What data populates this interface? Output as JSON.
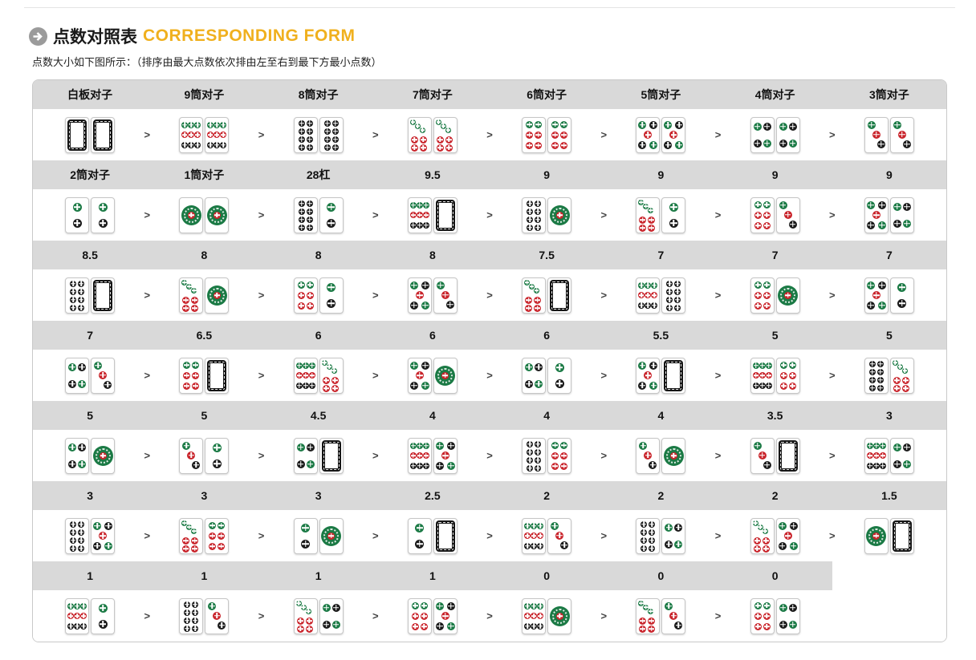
{
  "header": {
    "title_zh": "点数对照表",
    "title_en": "CORRESPONDING FORM",
    "subtitle": "点数大小如下图所示：（排序由最大点数依次排由左至右到最下方最小点数）"
  },
  "palette": {
    "green": "#1b7a45",
    "red": "#c9242b",
    "black": "#1a1a1a",
    "header_bg": "#d9d9d9",
    "title_en_color": "#f0b01e",
    "separator_color": "#444444"
  },
  "tile_legend": {
    "w": "white-dragon",
    "1": "1-dot",
    "2": "2-dot",
    "3": "3-dot",
    "4": "4-dot",
    "5": "5-dot",
    "6": "6-dot",
    "7": "7-dot",
    "8": "8-dot",
    "9": "9-dot"
  },
  "table": {
    "separator": ">",
    "columns": 8,
    "rows": [
      {
        "headers": [
          "白板对子",
          "9筒对子",
          "8筒对子",
          "7筒对子",
          "6筒对子",
          "5筒对子",
          "4筒对子",
          "3筒对子"
        ],
        "pairs": [
          [
            "w",
            "w"
          ],
          [
            "9",
            "9"
          ],
          [
            "8",
            "8"
          ],
          [
            "7",
            "7"
          ],
          [
            "6",
            "6"
          ],
          [
            "5",
            "5"
          ],
          [
            "4",
            "4"
          ],
          [
            "3",
            "3"
          ]
        ]
      },
      {
        "headers": [
          "2筒对子",
          "1筒对子",
          "28杠",
          "9.5",
          "9",
          "9",
          "9",
          "9"
        ],
        "pairs": [
          [
            "2",
            "2"
          ],
          [
            "1",
            "1"
          ],
          [
            "8",
            "2"
          ],
          [
            "9",
            "w"
          ],
          [
            "8",
            "1"
          ],
          [
            "7",
            "2"
          ],
          [
            "6",
            "3"
          ],
          [
            "5",
            "4"
          ]
        ]
      },
      {
        "headers": [
          "8.5",
          "8",
          "8",
          "8",
          "7.5",
          "7",
          "7",
          "7"
        ],
        "pairs": [
          [
            "8",
            "w"
          ],
          [
            "7",
            "1"
          ],
          [
            "6",
            "2"
          ],
          [
            "5",
            "3"
          ],
          [
            "7",
            "w"
          ],
          [
            "9",
            "8"
          ],
          [
            "6",
            "1"
          ],
          [
            "5",
            "2"
          ]
        ]
      },
      {
        "headers": [
          "7",
          "6.5",
          "6",
          "6",
          "6",
          "5.5",
          "5",
          "5"
        ],
        "pairs": [
          [
            "4",
            "3"
          ],
          [
            "6",
            "w"
          ],
          [
            "9",
            "7"
          ],
          [
            "5",
            "1"
          ],
          [
            "4",
            "2"
          ],
          [
            "5",
            "w"
          ],
          [
            "9",
            "6"
          ],
          [
            "8",
            "7"
          ]
        ]
      },
      {
        "headers": [
          "5",
          "5",
          "4.5",
          "4",
          "4",
          "4",
          "3.5",
          "3"
        ],
        "pairs": [
          [
            "4",
            "1"
          ],
          [
            "3",
            "2"
          ],
          [
            "4",
            "w"
          ],
          [
            "9",
            "5"
          ],
          [
            "8",
            "6"
          ],
          [
            "3",
            "1"
          ],
          [
            "3",
            "w"
          ],
          [
            "9",
            "4"
          ]
        ]
      },
      {
        "headers": [
          "3",
          "3",
          "3",
          "2.5",
          "2",
          "2",
          "2",
          "1.5"
        ],
        "pairs": [
          [
            "8",
            "5"
          ],
          [
            "7",
            "6"
          ],
          [
            "2",
            "1"
          ],
          [
            "2",
            "w"
          ],
          [
            "9",
            "3"
          ],
          [
            "8",
            "4"
          ],
          [
            "7",
            "5"
          ],
          [
            "1",
            "w"
          ]
        ]
      },
      {
        "headers": [
          "1",
          "1",
          "1",
          "1",
          "0",
          "0",
          "0"
        ],
        "pairs": [
          [
            "9",
            "2"
          ],
          [
            "8",
            "3"
          ],
          [
            "7",
            "4"
          ],
          [
            "6",
            "5"
          ],
          [
            "9",
            "1"
          ],
          [
            "7",
            "3"
          ],
          [
            "6",
            "4"
          ]
        ]
      }
    ]
  }
}
